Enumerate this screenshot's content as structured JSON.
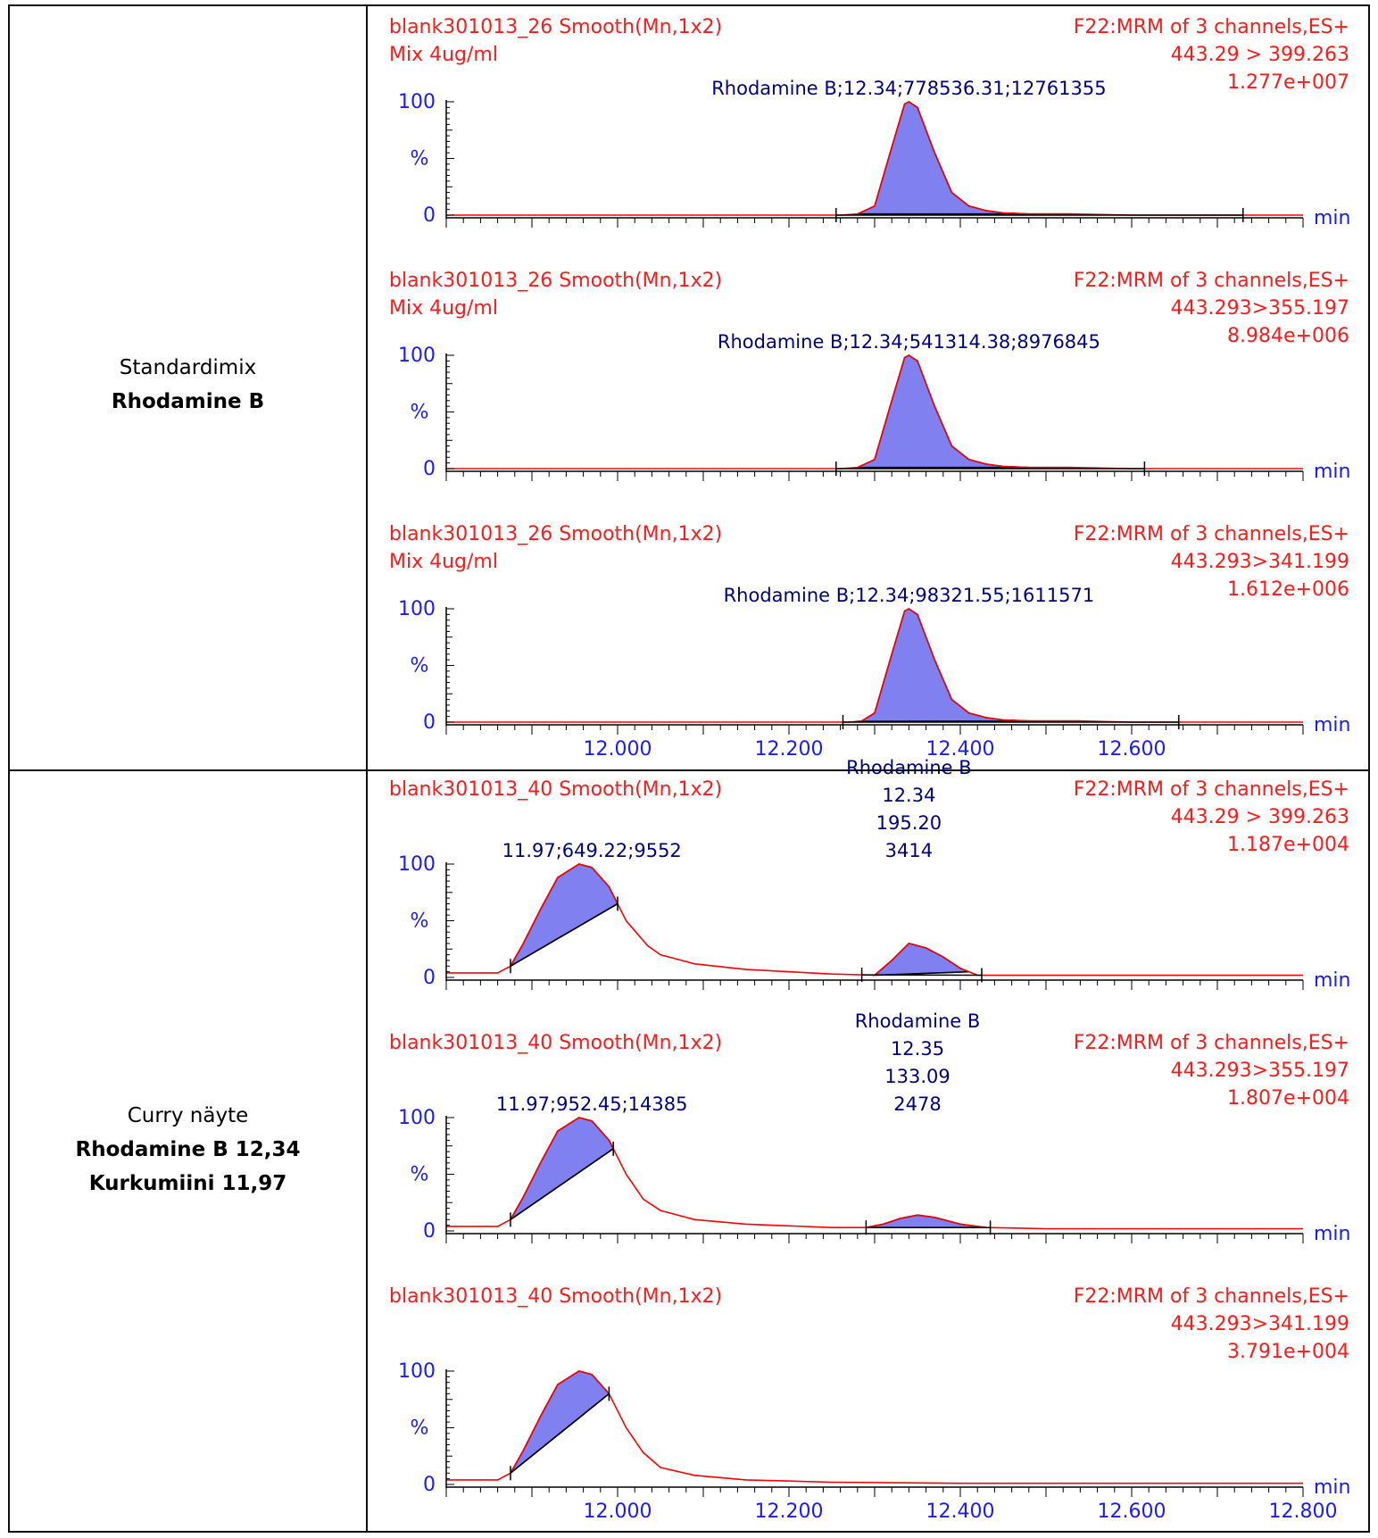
{
  "rows": [
    {
      "label_line1": "Standardimix",
      "label_line2": "Rhodamine B",
      "label_line3": ""
    },
    {
      "label_line1": "Curry näyte",
      "label_line2": "Rhodamine B 12,34",
      "label_line3": "Kurkumiini 11,97"
    }
  ],
  "colors": {
    "header": "#ff1a1a",
    "axis_text": "#1a1aff",
    "annotation": "#000080",
    "peak_fill": "#8080f0",
    "trace": "#ff0000",
    "axis": "#000000"
  },
  "chart_data": [
    {
      "type": "line",
      "header_left": [
        "blank301013_26 Smooth(Mn,1x2)",
        "Mix 4ug/ml"
      ],
      "header_right": [
        "F22:MRM of 3 channels,ES+",
        "443.29 > 399.263",
        "1.277e+007"
      ],
      "xlabel": "min",
      "ylabel": "%",
      "yticks": [
        "100",
        "0"
      ],
      "xlim": [
        11.8,
        12.8
      ],
      "ylim": [
        0,
        100
      ],
      "xticks": [],
      "grid": false,
      "peaks": [
        {
          "label_lines": [
            "Rhodamine B;12.34;778536.31;12761355"
          ],
          "start": 12.255,
          "end": 12.73,
          "apex": 12.34,
          "shaded": [
            12.28,
            12.53
          ]
        }
      ],
      "series": [
        {
          "x": [
            11.8,
            12.26,
            12.28,
            12.3,
            12.32,
            12.335,
            12.34,
            12.35,
            12.37,
            12.39,
            12.41,
            12.43,
            12.45,
            12.48,
            12.53,
            12.6,
            12.73,
            12.8
          ],
          "y": [
            0,
            0,
            1,
            8,
            60,
            98,
            100,
            95,
            55,
            20,
            8,
            4,
            2,
            1,
            1,
            0,
            0,
            0
          ]
        }
      ]
    },
    {
      "type": "line",
      "header_left": [
        "blank301013_26 Smooth(Mn,1x2)",
        "Mix 4ug/ml"
      ],
      "header_right": [
        "F22:MRM of 3 channels,ES+",
        "443.293>355.197",
        "8.984e+006"
      ],
      "xlabel": "min",
      "ylabel": "%",
      "yticks": [
        "100",
        "0"
      ],
      "xlim": [
        11.8,
        12.8
      ],
      "ylim": [
        0,
        100
      ],
      "xticks": [],
      "grid": false,
      "peaks": [
        {
          "label_lines": [
            "Rhodamine B;12.34;541314.38;8976845"
          ],
          "start": 12.255,
          "end": 12.615,
          "apex": 12.34,
          "shaded": [
            12.28,
            12.53
          ]
        }
      ],
      "series": [
        {
          "x": [
            11.8,
            12.26,
            12.28,
            12.3,
            12.32,
            12.335,
            12.34,
            12.35,
            12.37,
            12.39,
            12.41,
            12.43,
            12.45,
            12.48,
            12.53,
            12.6,
            12.8
          ],
          "y": [
            0,
            0,
            1,
            8,
            60,
            98,
            100,
            95,
            55,
            20,
            8,
            4,
            2,
            1,
            1,
            0,
            0
          ]
        }
      ]
    },
    {
      "type": "line",
      "header_left": [
        "blank301013_26 Smooth(Mn,1x2)",
        "Mix 4ug/ml"
      ],
      "header_right": [
        "F22:MRM of 3 channels,ES+",
        "443.293>341.199",
        "1.612e+006"
      ],
      "xlabel": "min",
      "ylabel": "%",
      "yticks": [
        "100",
        "0"
      ],
      "xlim": [
        11.8,
        12.8
      ],
      "ylim": [
        0,
        100
      ],
      "xticks": [
        "12.000",
        "12.200",
        "12.400",
        "12.600"
      ],
      "grid": false,
      "peaks": [
        {
          "label_lines": [
            "Rhodamine B;12.34;98321.55;1611571"
          ],
          "start": 12.263,
          "end": 12.655,
          "apex": 12.34,
          "shaded": [
            12.28,
            12.54
          ]
        }
      ],
      "series": [
        {
          "x": [
            11.8,
            12.27,
            12.285,
            12.3,
            12.32,
            12.335,
            12.34,
            12.35,
            12.37,
            12.39,
            12.41,
            12.43,
            12.45,
            12.48,
            12.52,
            12.54,
            12.6,
            12.8
          ],
          "y": [
            0,
            0,
            1,
            8,
            60,
            98,
            100,
            95,
            55,
            20,
            8,
            4,
            2,
            1,
            1,
            1,
            0,
            0
          ]
        }
      ]
    },
    {
      "type": "line",
      "header_left": [
        "blank301013_40 Smooth(Mn,1x2)"
      ],
      "header_right": [
        "F22:MRM of 3 channels,ES+",
        "443.29 > 399.263",
        "1.187e+004"
      ],
      "xlabel": "min",
      "ylabel": "%",
      "yticks": [
        "100",
        "0"
      ],
      "xlim": [
        11.8,
        12.8
      ],
      "ylim": [
        0,
        100
      ],
      "xticks": [],
      "grid": false,
      "peaks": [
        {
          "label_lines": [
            "11.97;649.22;9552"
          ],
          "start": 11.875,
          "end": 12.0,
          "apex": 11.97,
          "shaded": [
            11.875,
            12.0
          ]
        },
        {
          "label_lines": [
            "Rhodamine B",
            "12.34",
            "195.20",
            "3414"
          ],
          "start": 12.285,
          "end": 12.425,
          "apex": 12.34,
          "shaded": [
            12.3,
            12.41
          ]
        }
      ],
      "series": [
        {
          "x": [
            11.8,
            11.86,
            11.875,
            11.89,
            11.91,
            11.93,
            11.955,
            11.97,
            11.99,
            12.01,
            12.035,
            12.05,
            12.09,
            12.15,
            12.25,
            12.3,
            12.32,
            12.34,
            12.35,
            12.36,
            12.38,
            12.4,
            12.42,
            12.5,
            12.65,
            12.8
          ],
          "y": [
            4,
            4,
            10,
            30,
            60,
            88,
            100,
            97,
            80,
            50,
            28,
            20,
            12,
            7,
            3,
            2,
            15,
            30,
            28,
            26,
            18,
            8,
            2,
            2,
            2,
            2
          ]
        }
      ]
    },
    {
      "type": "line",
      "header_left": [
        "blank301013_40 Smooth(Mn,1x2)"
      ],
      "header_right": [
        "F22:MRM of 3 channels,ES+",
        "443.293>355.197",
        "1.807e+004"
      ],
      "xlabel": "min",
      "ylabel": "%",
      "yticks": [
        "100",
        "0"
      ],
      "xlim": [
        11.8,
        12.8
      ],
      "ylim": [
        0,
        100
      ],
      "xticks": [],
      "grid": false,
      "peaks": [
        {
          "label_lines": [
            "11.97;952.45;14385"
          ],
          "start": 11.875,
          "end": 11.995,
          "apex": 11.97,
          "shaded": [
            11.875,
            11.995
          ]
        },
        {
          "label_lines": [
            "Rhodamine B",
            "12.35",
            "133.09",
            "2478"
          ],
          "start": 12.29,
          "end": 12.435,
          "apex": 12.35,
          "shaded": [
            12.29,
            12.43
          ]
        }
      ],
      "series": [
        {
          "x": [
            11.8,
            11.86,
            11.875,
            11.89,
            11.91,
            11.93,
            11.955,
            11.97,
            11.99,
            12.01,
            12.03,
            12.05,
            12.09,
            12.15,
            12.25,
            12.29,
            12.31,
            12.33,
            12.35,
            12.37,
            12.4,
            12.43,
            12.5,
            12.65,
            12.8
          ],
          "y": [
            4,
            4,
            10,
            30,
            60,
            88,
            100,
            97,
            80,
            50,
            28,
            18,
            10,
            6,
            3,
            3,
            6,
            11,
            14,
            12,
            6,
            3,
            2,
            2,
            2
          ]
        }
      ]
    },
    {
      "type": "line",
      "header_left": [
        "blank301013_40 Smooth(Mn,1x2)"
      ],
      "header_right": [
        "F22:MRM of 3 channels,ES+",
        "443.293>341.199",
        "3.791e+004"
      ],
      "xlabel": "min",
      "ylabel": "%",
      "yticks": [
        "100",
        "0"
      ],
      "xlim": [
        11.8,
        12.8
      ],
      "ylim": [
        0,
        100
      ],
      "xticks": [
        "12.000",
        "12.200",
        "12.400",
        "12.600",
        "12.800"
      ],
      "grid": false,
      "peaks": [
        {
          "label_lines": [],
          "start": 11.875,
          "end": 11.99,
          "apex": 11.97,
          "shaded": [
            11.875,
            11.99
          ]
        }
      ],
      "series": [
        {
          "x": [
            11.8,
            11.86,
            11.875,
            11.89,
            11.91,
            11.93,
            11.955,
            11.97,
            11.99,
            12.01,
            12.03,
            12.05,
            12.09,
            12.15,
            12.25,
            12.4,
            12.8
          ],
          "y": [
            4,
            4,
            10,
            30,
            60,
            88,
            100,
            97,
            80,
            50,
            28,
            15,
            8,
            4,
            2,
            1,
            1
          ]
        }
      ]
    }
  ]
}
